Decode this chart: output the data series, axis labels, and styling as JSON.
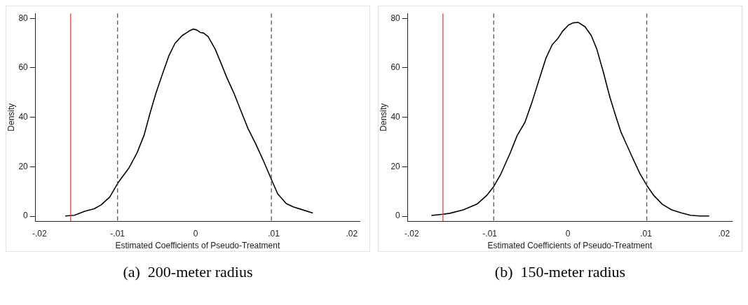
{
  "chart_data": [
    {
      "type": "line",
      "xlabel": "Estimated Coefficients of Pseudo-Treatment",
      "ylabel": "Density",
      "annotations": [
        "(a)  200-meter radius"
      ],
      "legend": false,
      "grid": false,
      "marker": "none",
      "line_style": "solid",
      "xlim": [
        -0.0205,
        0.021
      ],
      "ylim": [
        -2,
        82
      ],
      "xticks": [
        {
          "value": -0.02,
          "label": "-.02"
        },
        {
          "value": -0.01,
          "label": "-.01"
        },
        0,
        {
          "value": 0.01,
          "label": ".01"
        },
        {
          "value": 0.02,
          "label": ".02"
        }
      ],
      "yticks": [
        0,
        20,
        40,
        60,
        80
      ],
      "ref_lines": [
        {
          "axis": "x",
          "value": -0.016,
          "color": "#e8413c",
          "line_style": "solid"
        },
        {
          "axis": "x",
          "value": -0.01,
          "color": "#555555",
          "line_style": "dashed"
        },
        {
          "axis": "x",
          "value": 0.0097,
          "color": "#555555",
          "line_style": "dashed"
        }
      ],
      "series": [
        {
          "color": "#000000",
          "x": [
            -0.0167,
            -0.01554,
            -0.0142,
            -0.013,
            -0.0121,
            -0.011,
            -0.00993,
            -0.00857,
            -0.00751,
            -0.0066,
            -0.00584,
            -0.00508,
            -0.00432,
            -0.00341,
            -0.00265,
            -0.00174,
            -0.00083,
            -0.00029,
            0.00014,
            0.0006,
            0.001,
            0.0016,
            0.0025,
            0.00326,
            0.004,
            0.0049,
            0.0058,
            0.0067,
            0.0077,
            0.0086,
            0.0097,
            0.0105,
            0.0116,
            0.0125,
            0.0134,
            0.015
          ],
          "values": [
            0.1,
            0.4,
            2,
            3,
            4.6,
            7.8,
            13.6,
            19.4,
            25.6,
            32.8,
            41.7,
            49.8,
            56.9,
            65,
            69.9,
            73,
            74.9,
            75.7,
            75.3,
            74.3,
            74.1,
            72.6,
            67.6,
            61.8,
            56,
            49.8,
            42.6,
            35.5,
            29.2,
            23,
            14.9,
            9.1,
            5.1,
            3.8,
            2.9,
            1.3
          ]
        }
      ]
    },
    {
      "type": "line",
      "xlabel": "Estimated Coefficients of Pseudo-Treatment",
      "ylabel": "Density",
      "annotations": [
        "(b)  150-meter radius"
      ],
      "legend": false,
      "grid": false,
      "marker": "none",
      "line_style": "solid",
      "xlim": [
        -0.0205,
        0.021
      ],
      "ylim": [
        -2,
        82
      ],
      "xticks": [
        {
          "value": -0.02,
          "label": "-.02"
        },
        {
          "value": -0.01,
          "label": "-.01"
        },
        0,
        {
          "value": 0.01,
          "label": ".01"
        },
        {
          "value": 0.02,
          "label": ".02"
        }
      ],
      "yticks": [
        0,
        20,
        40,
        60,
        80
      ],
      "ref_lines": [
        {
          "axis": "x",
          "value": -0.016,
          "color": "#e8413c",
          "line_style": "solid"
        },
        {
          "axis": "x",
          "value": -0.0095,
          "color": "#555555",
          "line_style": "dashed"
        },
        {
          "axis": "x",
          "value": 0.0101,
          "color": "#555555",
          "line_style": "dashed"
        }
      ],
      "series": [
        {
          "color": "#000000",
          "x": [
            -0.01748,
            -0.01602,
            -0.0151,
            -0.0134,
            -0.0116,
            -0.0104,
            -0.0095,
            -0.0086,
            -0.0074,
            -0.0065,
            -0.0055,
            -0.0046,
            -0.0037,
            -0.0028,
            -0.002,
            -0.0013,
            -0.00068,
            8e-05,
            0.00068,
            0.0013,
            0.0022,
            0.003,
            0.0037,
            0.0045,
            0.0054,
            0.0062,
            0.0068,
            0.0075,
            0.0084,
            0.0092,
            0.0101,
            0.011,
            0.0121,
            0.0133,
            0.0145,
            0.0157,
            0.0169,
            0.0181
          ],
          "values": [
            0.3,
            0.8,
            1.2,
            2.6,
            5,
            8.4,
            12,
            17,
            25.5,
            32.6,
            38,
            46.1,
            55.1,
            64,
            69.4,
            71.8,
            74.8,
            77.3,
            78.2,
            78.4,
            76.6,
            73,
            67.6,
            58.7,
            47.9,
            39.8,
            34,
            29.1,
            22.8,
            17.4,
            12.5,
            8.4,
            4.8,
            2.6,
            1.4,
            0.4,
            0.1,
            0.1
          ]
        }
      ]
    }
  ]
}
